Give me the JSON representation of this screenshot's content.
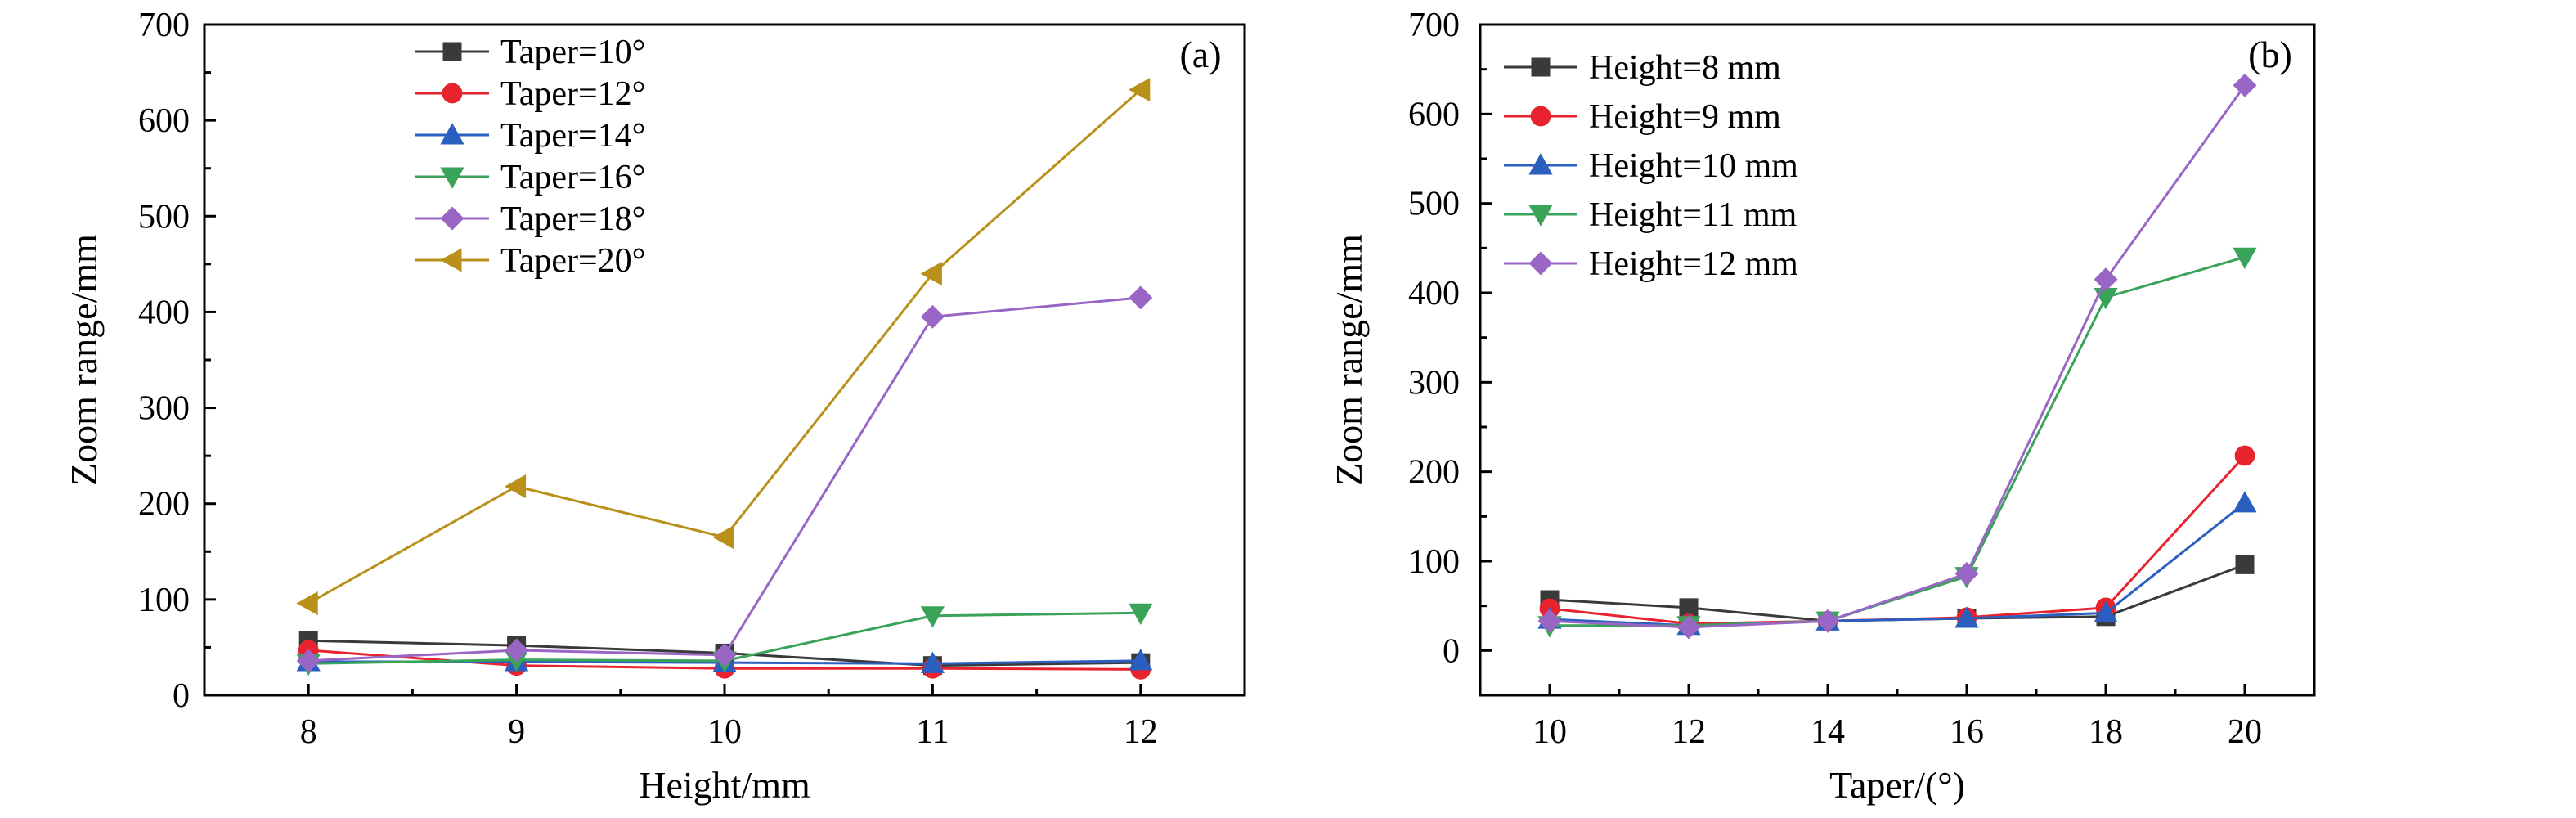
{
  "chart_data": [
    {
      "type": "line",
      "panel_label": "(a)",
      "xlabel": "Height/mm",
      "ylabel": "Zoom range/mm",
      "x": [
        8,
        9,
        10,
        11,
        12
      ],
      "xticks": [
        "8",
        "9",
        "10",
        "11",
        "12"
      ],
      "xlim": [
        7.5,
        12.5
      ],
      "ylim": [
        0,
        700
      ],
      "yticks": [
        "0",
        "100",
        "200",
        "300",
        "400",
        "500",
        "600",
        "700"
      ],
      "legend_position": "top-left",
      "grid": false,
      "series": [
        {
          "name": "Taper=10°",
          "color": "#3a3a3a",
          "marker": "square",
          "values": [
            57,
            52,
            44,
            31,
            34
          ]
        },
        {
          "name": "Taper=12°",
          "color": "#e8232e",
          "marker": "circle",
          "values": [
            47,
            31,
            28,
            28,
            27
          ]
        },
        {
          "name": "Taper=14°",
          "color": "#2a5fc0",
          "marker": "triangle-up",
          "values": [
            35,
            35,
            34,
            33,
            36
          ]
        },
        {
          "name": "Taper=16°",
          "color": "#3aa35a",
          "marker": "triangle-down",
          "values": [
            33,
            37,
            36,
            83,
            86
          ]
        },
        {
          "name": "Taper=18°",
          "color": "#9a66c6",
          "marker": "diamond",
          "values": [
            36,
            47,
            42,
            395,
            415
          ]
        },
        {
          "name": "Taper=20°",
          "color": "#b8901a",
          "marker": "triangle-left",
          "values": [
            96,
            218,
            165,
            440,
            632
          ]
        }
      ]
    },
    {
      "type": "line",
      "panel_label": "(b)",
      "xlabel": "Taper/(°)",
      "ylabel": "Zoom range/mm",
      "x": [
        10,
        12,
        14,
        16,
        18,
        20
      ],
      "xticks": [
        "10",
        "12",
        "14",
        "16",
        "18",
        "20"
      ],
      "xlim": [
        9,
        21
      ],
      "ylim": [
        -50,
        700
      ],
      "yticks": [
        "0",
        "100",
        "200",
        "300",
        "400",
        "500",
        "600",
        "700"
      ],
      "legend_position": "top-left",
      "grid": false,
      "series": [
        {
          "name": "Height=8 mm",
          "color": "#3a3a3a",
          "marker": "square",
          "values": [
            57,
            48,
            33,
            36,
            38,
            96
          ]
        },
        {
          "name": "Height=9 mm",
          "color": "#e8232e",
          "marker": "circle",
          "values": [
            47,
            30,
            33,
            37,
            48,
            218
          ]
        },
        {
          "name": "Height=10 mm",
          "color": "#2a5fc0",
          "marker": "triangle-up",
          "values": [
            35,
            28,
            33,
            36,
            42,
            165
          ]
        },
        {
          "name": "Height=11 mm",
          "color": "#3aa35a",
          "marker": "triangle-down",
          "values": [
            28,
            28,
            33,
            83,
            395,
            440
          ]
        },
        {
          "name": "Height=12 mm",
          "color": "#9a66c6",
          "marker": "diamond",
          "values": [
            33,
            26,
            33,
            86,
            415,
            632
          ]
        }
      ]
    }
  ]
}
